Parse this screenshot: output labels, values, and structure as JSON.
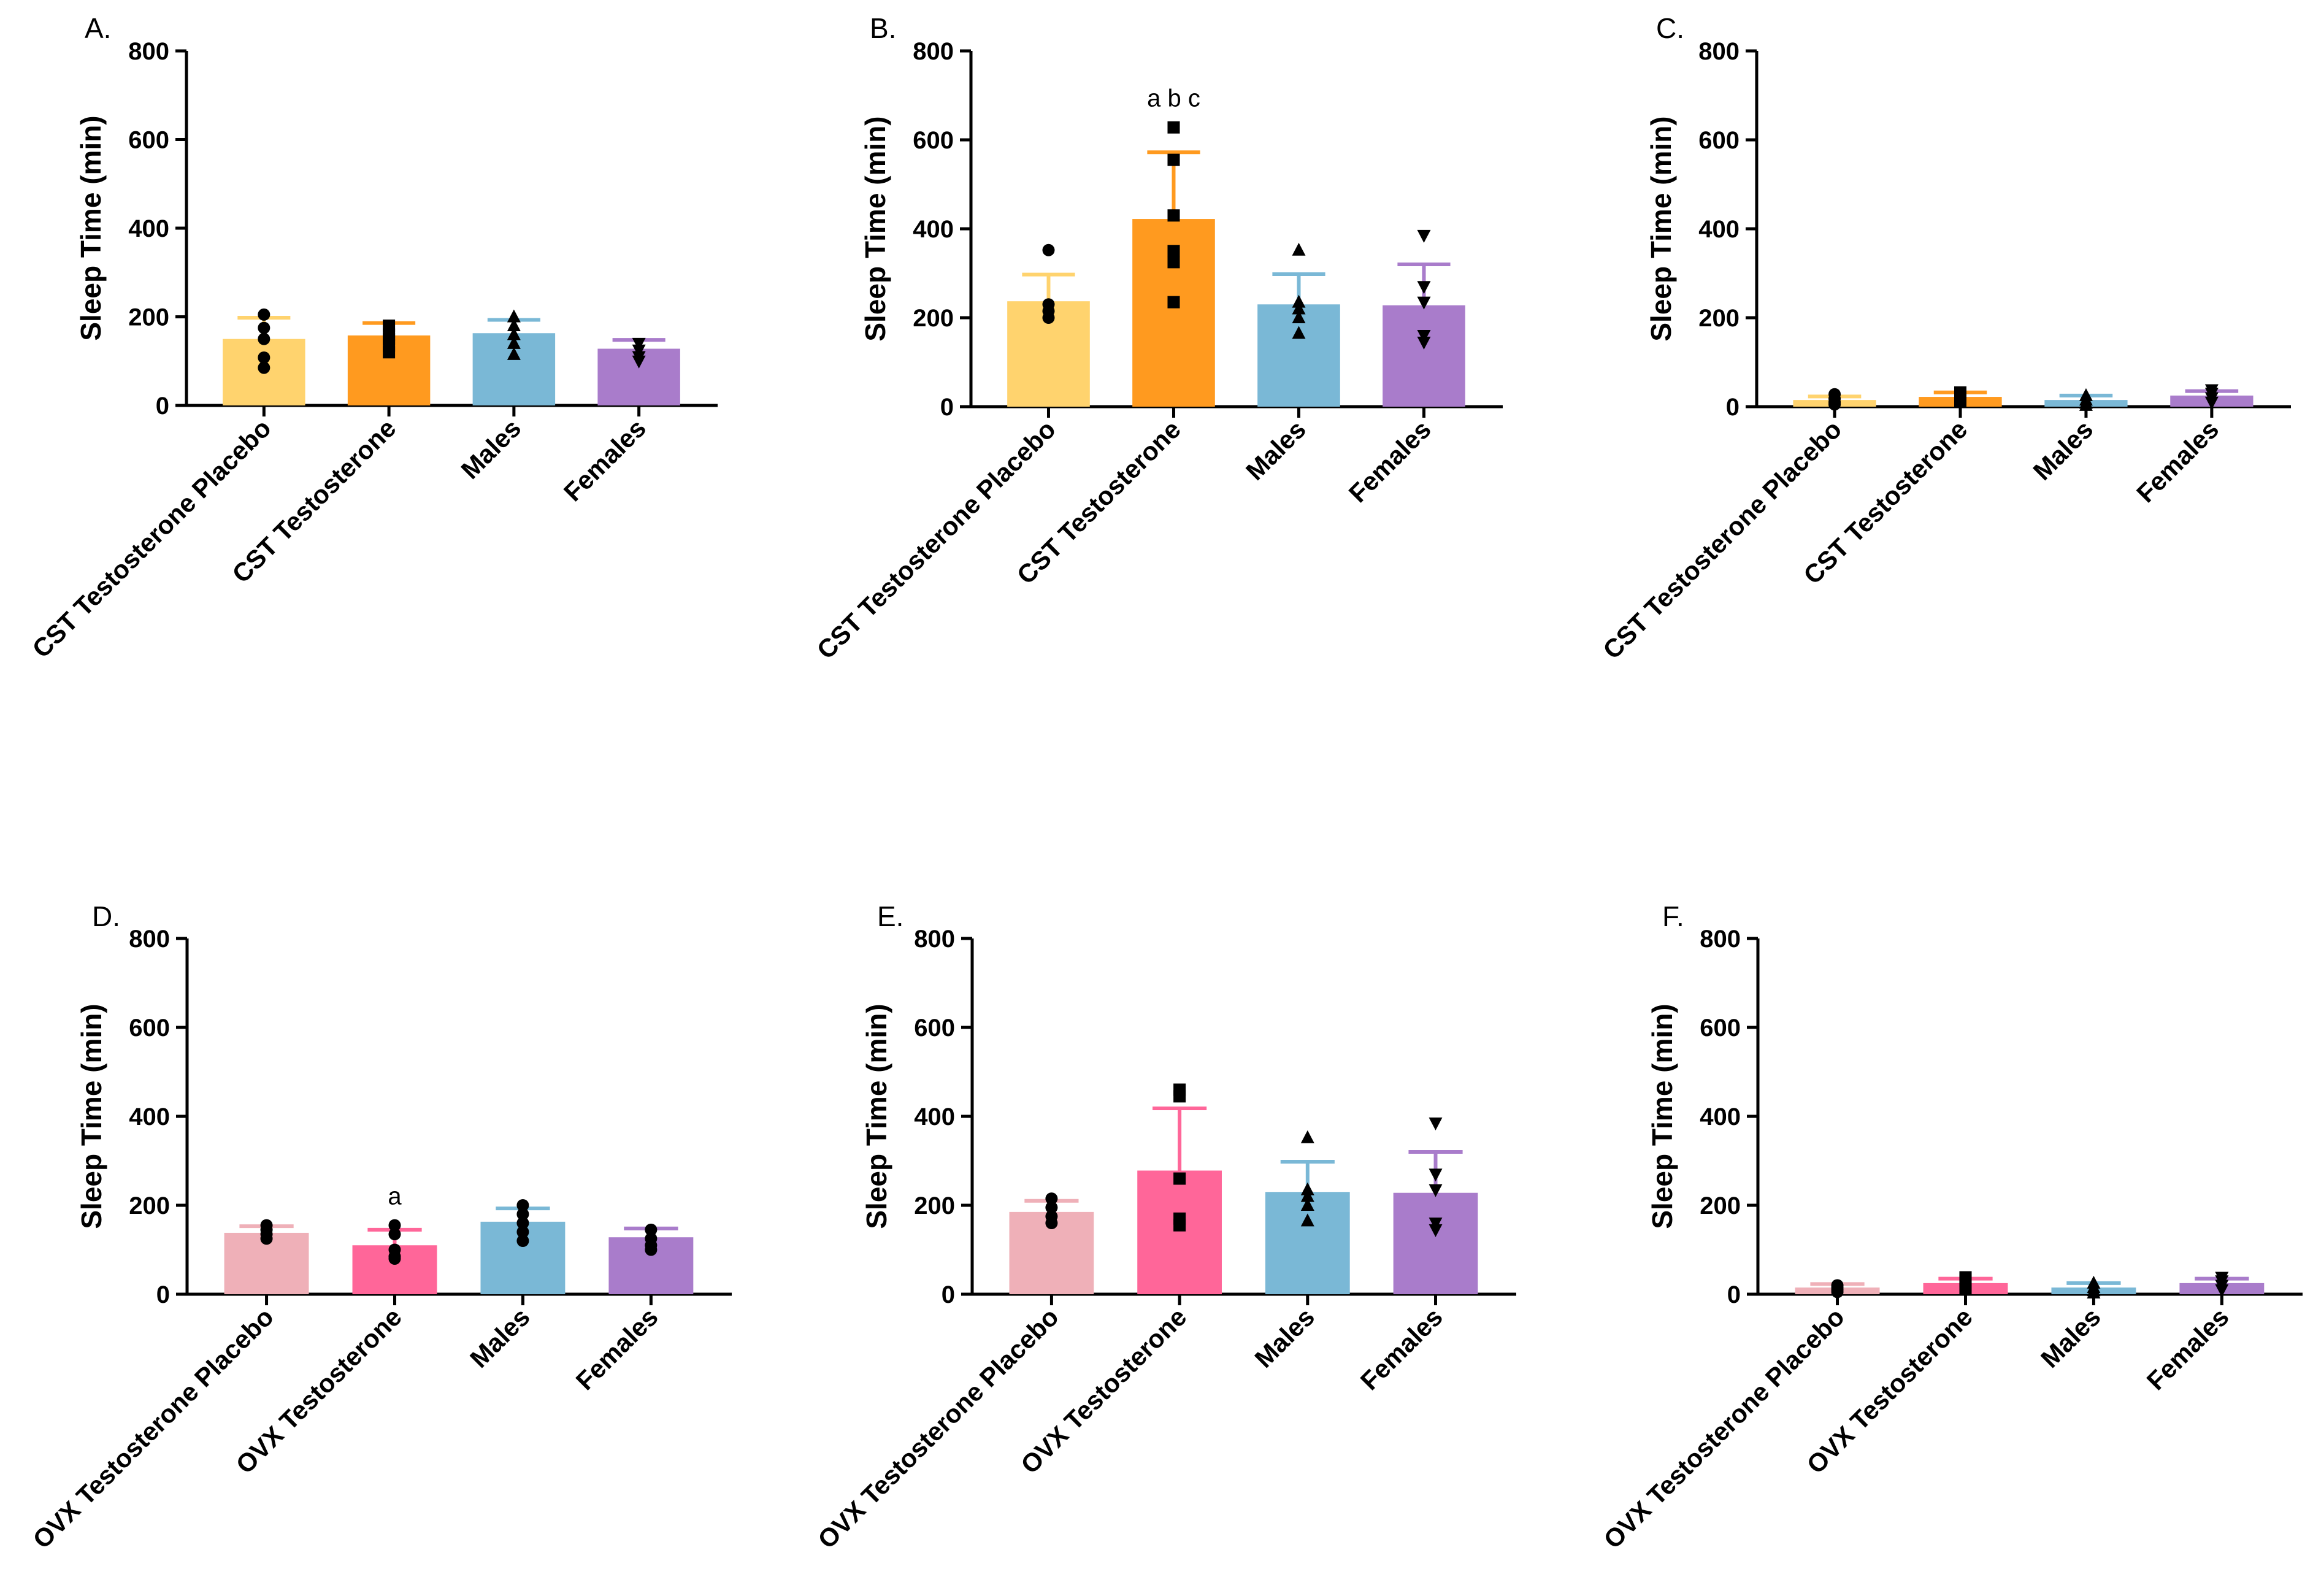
{
  "chart_data": [
    {
      "panel": "A.",
      "type": "bar",
      "ylabel": "Sleep Time (min)",
      "ylim": [
        0,
        800
      ],
      "yticks": [
        0,
        200,
        400,
        600,
        800
      ],
      "categories": [
        "CST Testosterone Placebo",
        "CST Testosterone",
        "Males",
        "Females"
      ],
      "values": [
        150,
        158,
        163,
        128
      ],
      "errors": [
        48,
        28,
        30,
        20
      ],
      "colors": [
        "#FFD36E",
        "#FF9A1F",
        "#7AB8D6",
        "#A97CCB"
      ],
      "markers": [
        "circle",
        "square",
        "triangle-up",
        "triangle-down"
      ],
      "points": [
        [
          205,
          175,
          150,
          108,
          85
        ],
        [
          180,
          160,
          150,
          135,
          120
        ],
        [
          200,
          180,
          160,
          140,
          115
        ],
        [
          140,
          125,
          110,
          100
        ]
      ],
      "annotations": [
        "",
        "",
        "",
        ""
      ]
    },
    {
      "panel": "B.",
      "type": "bar",
      "ylabel": "Sleep Time (min)",
      "ylim": [
        0,
        800
      ],
      "yticks": [
        0,
        200,
        400,
        600,
        800
      ],
      "categories": [
        "CST Testosterone Placebo",
        "CST Testosterone",
        "Males",
        "Females"
      ],
      "values": [
        237,
        422,
        230,
        228
      ],
      "errors": [
        60,
        150,
        68,
        92
      ],
      "colors": [
        "#FFD36E",
        "#FF9A1F",
        "#7AB8D6",
        "#A97CCB"
      ],
      "markers": [
        "circle",
        "square",
        "triangle-up",
        "triangle-down"
      ],
      "points": [
        [
          352,
          230,
          215,
          200
        ],
        [
          628,
          555,
          430,
          350,
          325,
          235
        ],
        [
          352,
          235,
          220,
          200,
          165
        ],
        [
          385,
          270,
          235,
          160,
          145
        ]
      ],
      "annotations": [
        "",
        "a b c",
        "",
        ""
      ]
    },
    {
      "panel": "C.",
      "type": "bar",
      "ylabel": "Sleep Time (min)",
      "ylim": [
        0,
        800
      ],
      "yticks": [
        0,
        200,
        400,
        600,
        800
      ],
      "categories": [
        "CST Testosterone Placebo",
        "CST Testosterone",
        "Males",
        "Females"
      ],
      "values": [
        15,
        22,
        15,
        25
      ],
      "errors": [
        8,
        10,
        10,
        10
      ],
      "colors": [
        "#FFD36E",
        "#FF9A1F",
        "#7AB8D6",
        "#A97CCB"
      ],
      "markers": [
        "circle",
        "square",
        "triangle-up",
        "triangle-down"
      ],
      "points": [
        [
          28,
          18,
          10,
          5
        ],
        [
          32,
          25,
          18,
          12
        ],
        [
          25,
          15,
          8,
          3
        ],
        [
          38,
          30,
          20,
          10
        ]
      ],
      "annotations": [
        "",
        "",
        "",
        ""
      ]
    },
    {
      "panel": "D.",
      "type": "bar",
      "ylabel": "Sleep Time (min)",
      "ylim": [
        0,
        800
      ],
      "yticks": [
        0,
        200,
        400,
        600,
        800
      ],
      "categories": [
        "OVX Testosterone Placebo",
        "OVX Testosterone",
        "Males",
        "Females"
      ],
      "values": [
        138,
        110,
        163,
        128
      ],
      "errors": [
        15,
        35,
        30,
        20
      ],
      "colors": [
        "#EFB0B8",
        "#FF6699",
        "#7AB8D6",
        "#A97CCB"
      ],
      "markers": [
        "circle",
        "circle",
        "circle",
        "circle"
      ],
      "points": [
        [
          155,
          145,
          135,
          125
        ],
        [
          155,
          135,
          100,
          85,
          80
        ],
        [
          200,
          180,
          160,
          140,
          120
        ],
        [
          145,
          125,
          110,
          100
        ]
      ],
      "annotations": [
        "",
        "a",
        "",
        ""
      ]
    },
    {
      "panel": "E.",
      "type": "bar",
      "ylabel": "Sleep Time (min)",
      "ylim": [
        0,
        800
      ],
      "yticks": [
        0,
        200,
        400,
        600,
        800
      ],
      "categories": [
        "OVX Testosterone Placebo",
        "OVX Testosterone",
        "Males",
        "Females"
      ],
      "values": [
        185,
        278,
        230,
        228
      ],
      "errors": [
        25,
        140,
        68,
        92
      ],
      "colors": [
        "#EFB0B8",
        "#FF6699",
        "#7AB8D6",
        "#A97CCB"
      ],
      "markers": [
        "circle",
        "square",
        "triangle-up",
        "triangle-down"
      ],
      "points": [
        [
          215,
          195,
          175,
          160
        ],
        [
          460,
          445,
          260,
          170,
          155
        ],
        [
          352,
          235,
          220,
          200,
          165
        ],
        [
          385,
          270,
          235,
          160,
          145
        ]
      ],
      "annotations": [
        "",
        "",
        "",
        ""
      ]
    },
    {
      "panel": "F.",
      "type": "bar",
      "ylabel": "Sleep Time (min)",
      "ylim": [
        0,
        800
      ],
      "yticks": [
        0,
        200,
        400,
        600,
        800
      ],
      "categories": [
        "OVX Testosterone Placebo",
        "OVX Testosterone",
        "Males",
        "Females"
      ],
      "values": [
        15,
        25,
        15,
        25
      ],
      "errors": [
        8,
        10,
        10,
        10
      ],
      "colors": [
        "#EFB0B8",
        "#FF6699",
        "#7AB8D6",
        "#A97CCB"
      ],
      "markers": [
        "circle",
        "square",
        "triangle-up",
        "triangle-down"
      ],
      "points": [
        [
          20,
          15,
          10,
          5
        ],
        [
          38,
          30,
          20,
          12
        ],
        [
          25,
          15,
          8,
          3
        ],
        [
          38,
          30,
          20,
          10
        ]
      ],
      "annotations": [
        "",
        "",
        "",
        ""
      ]
    }
  ]
}
